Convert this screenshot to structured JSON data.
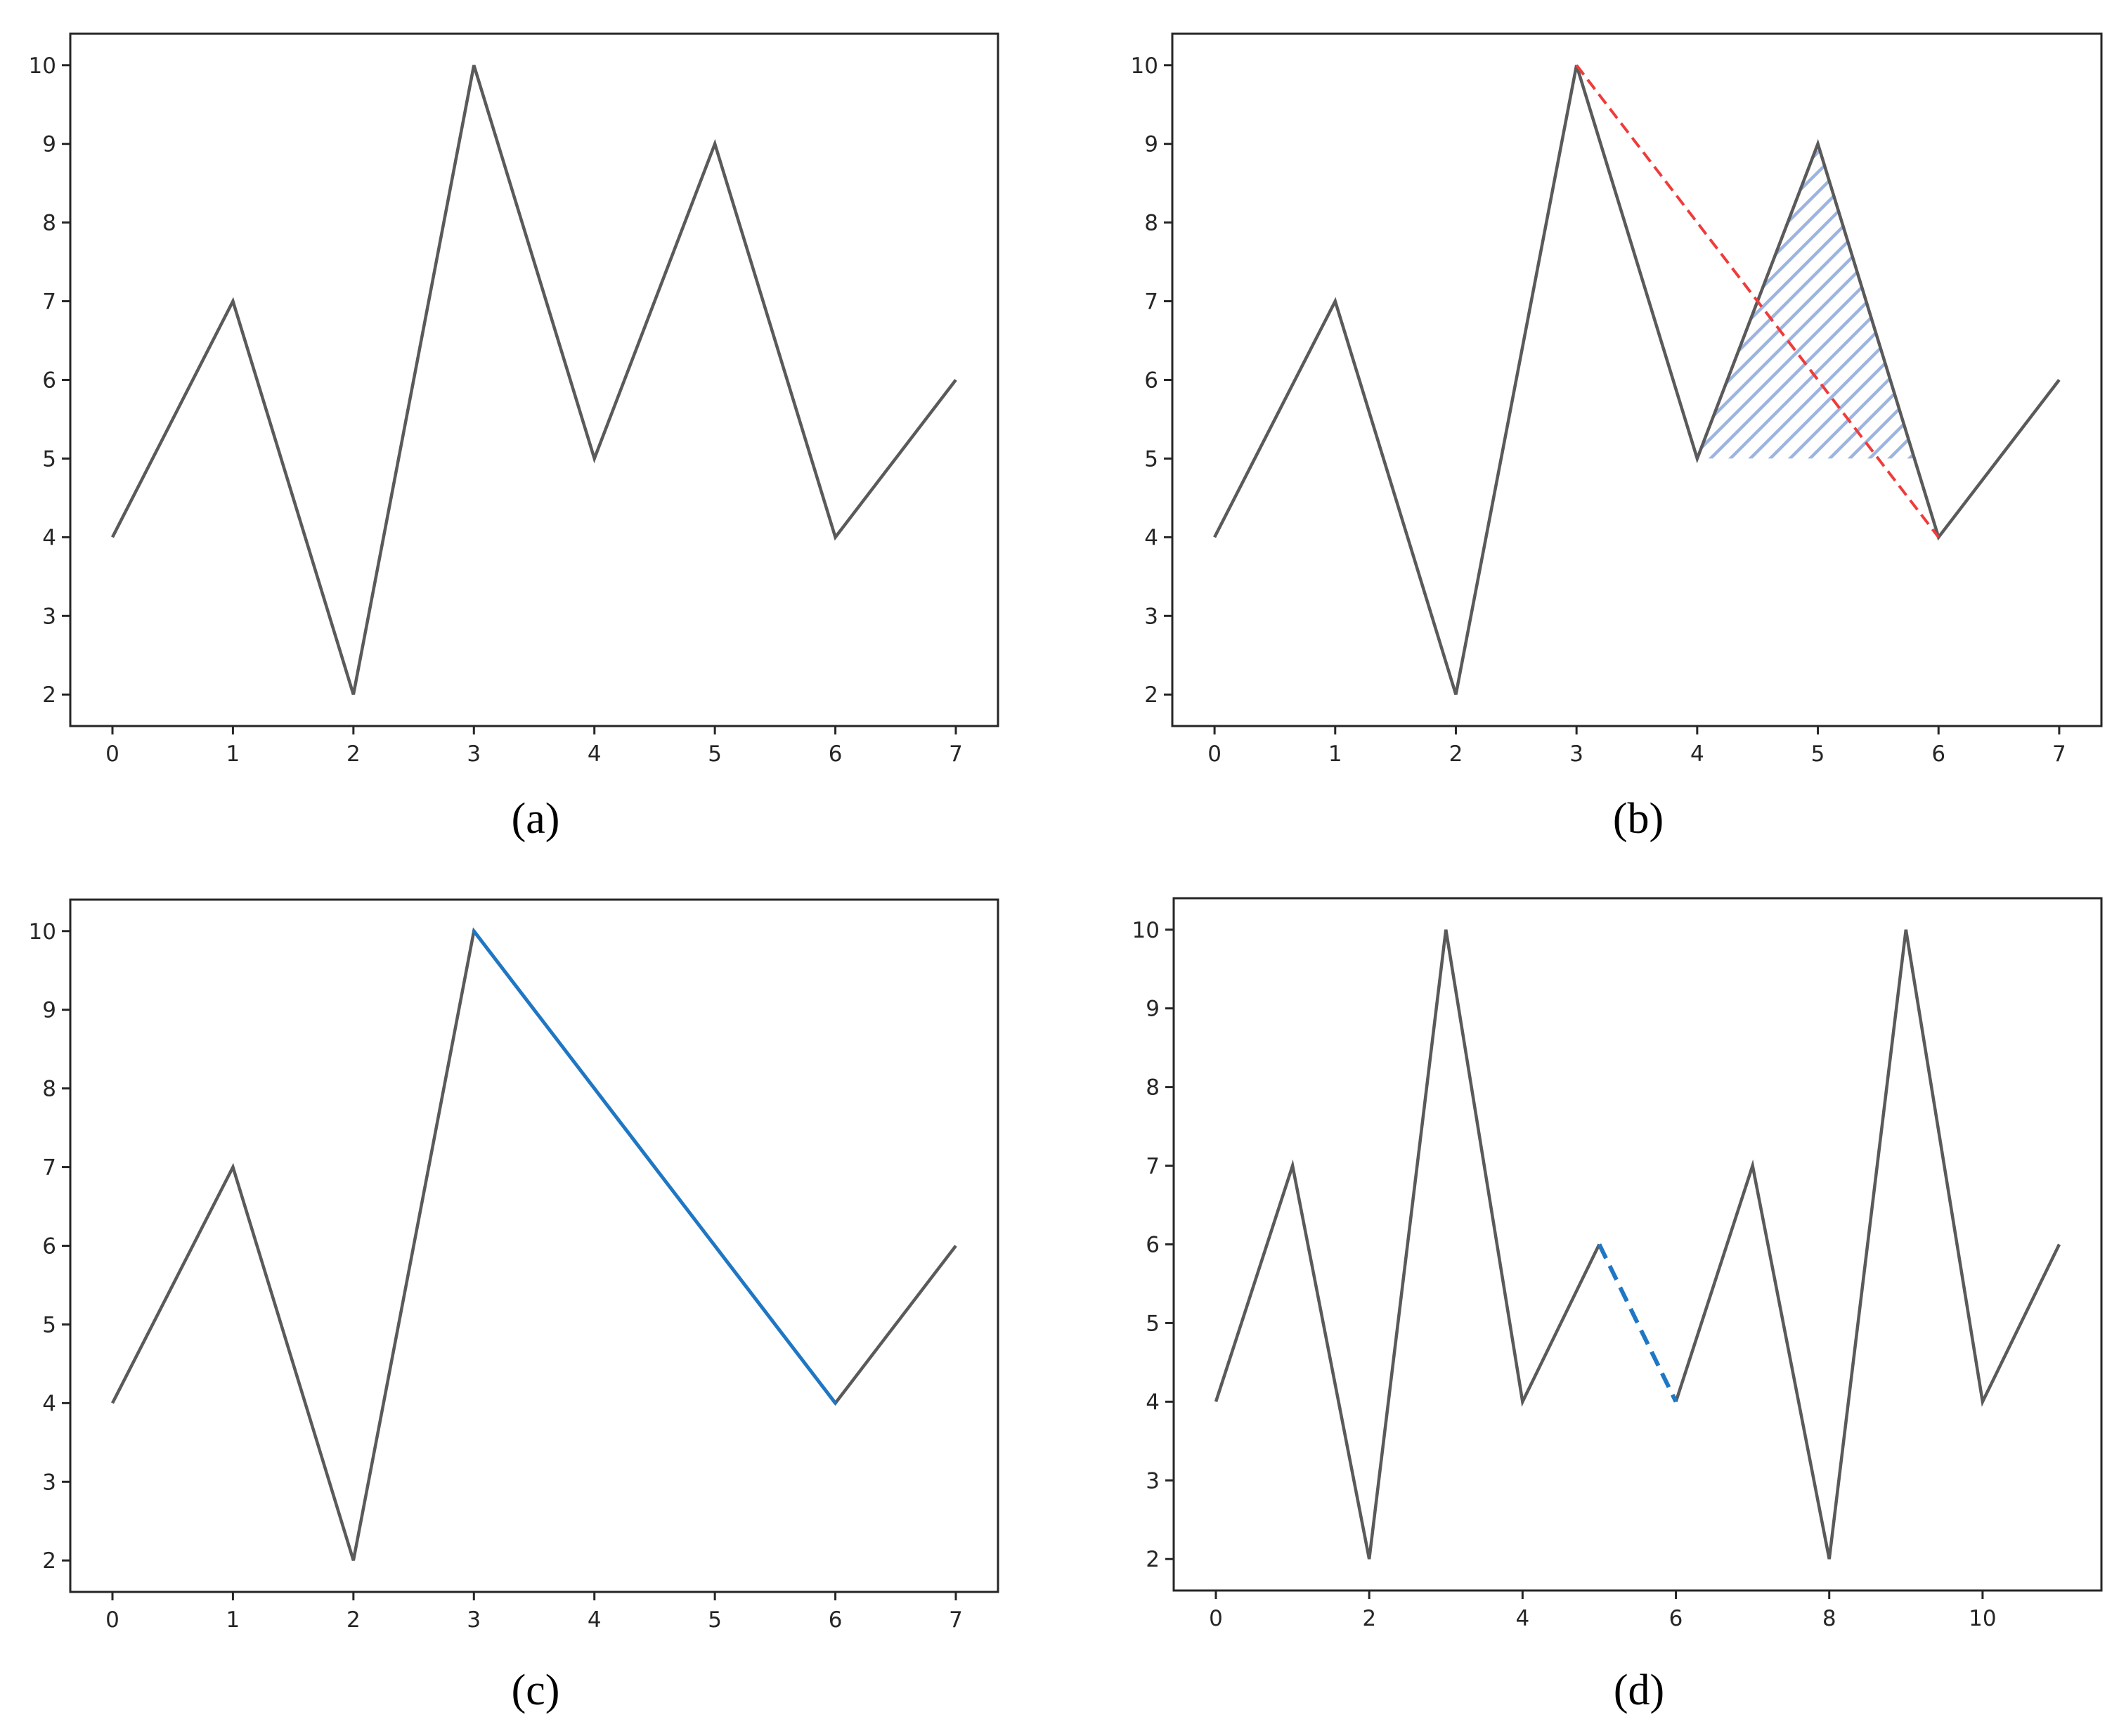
{
  "colors": {
    "main_line": "#5a5a5a",
    "red_dashed": "#ef3b3b",
    "blue_line": "#1f77c4",
    "hatch": "#9db4e0"
  },
  "chart_data": [
    {
      "id": "a",
      "type": "line",
      "caption": "(a)",
      "x": [
        0,
        1,
        2,
        3,
        4,
        5,
        6,
        7
      ],
      "series": [
        {
          "values": [
            4,
            7,
            2,
            10,
            5,
            9,
            4,
            6
          ],
          "color": "#5a5a5a"
        }
      ],
      "xticks": [
        "0",
        "1",
        "2",
        "3",
        "4",
        "5",
        "6",
        "7"
      ],
      "yticks": [
        "2",
        "3",
        "4",
        "5",
        "6",
        "7",
        "8",
        "9",
        "10"
      ],
      "xlim": [
        -0.35,
        7.35
      ],
      "ylim": [
        1.6,
        10.4
      ],
      "grid": false
    },
    {
      "id": "b",
      "type": "line",
      "caption": "(b)",
      "x": [
        0,
        1,
        2,
        3,
        4,
        5,
        6,
        7
      ],
      "series": [
        {
          "values": [
            4,
            7,
            2,
            10,
            5,
            9,
            4,
            6
          ],
          "color": "#5a5a5a"
        }
      ],
      "overlays": [
        {
          "kind": "dashed-line",
          "points": [
            [
              3,
              10
            ],
            [
              6,
              4
            ]
          ],
          "color": "#ef3b3b"
        },
        {
          "kind": "hatched-fill",
          "points": [
            [
              4,
              5
            ],
            [
              5,
              9
            ],
            [
              5.8,
              5
            ]
          ],
          "color": "#9db4e0"
        }
      ],
      "xticks": [
        "0",
        "1",
        "2",
        "3",
        "4",
        "5",
        "6",
        "7"
      ],
      "yticks": [
        "2",
        "3",
        "4",
        "5",
        "6",
        "7",
        "8",
        "9",
        "10"
      ],
      "xlim": [
        -0.35,
        7.35
      ],
      "ylim": [
        1.6,
        10.4
      ],
      "grid": false
    },
    {
      "id": "c",
      "type": "line",
      "caption": "(c)",
      "x": [
        0,
        1,
        2,
        3,
        6,
        7
      ],
      "series": [
        {
          "values": [
            4,
            7,
            2,
            10,
            4,
            6
          ],
          "color": "#5a5a5a"
        }
      ],
      "overlays": [
        {
          "kind": "solid-line",
          "points": [
            [
              3,
              10
            ],
            [
              6,
              4
            ]
          ],
          "color": "#1f77c4"
        }
      ],
      "xticks": [
        "0",
        "1",
        "2",
        "3",
        "4",
        "5",
        "6",
        "7"
      ],
      "yticks": [
        "2",
        "3",
        "4",
        "5",
        "6",
        "7",
        "8",
        "9",
        "10"
      ],
      "xlim": [
        -0.35,
        7.35
      ],
      "ylim": [
        1.6,
        10.4
      ],
      "grid": false
    },
    {
      "id": "d",
      "type": "line",
      "caption": "(d)",
      "x": [
        0,
        1,
        2,
        3,
        4,
        5,
        6,
        7,
        8,
        9,
        10,
        11
      ],
      "series": [
        {
          "values": [
            4,
            7,
            2,
            10,
            4,
            6,
            4,
            7,
            2,
            10,
            4,
            6
          ],
          "color": "#5a5a5a",
          "gap_after_index": 5
        }
      ],
      "overlays": [
        {
          "kind": "dashed-line",
          "points": [
            [
              5,
              6
            ],
            [
              6,
              4
            ]
          ],
          "color": "#1f77c4"
        }
      ],
      "xticks": [
        "0",
        "2",
        "4",
        "6",
        "8",
        "10"
      ],
      "xtick_values": [
        0,
        2,
        4,
        6,
        8,
        10
      ],
      "yticks": [
        "2",
        "3",
        "4",
        "5",
        "6",
        "7",
        "8",
        "9",
        "10"
      ],
      "xlim": [
        -0.55,
        11.55
      ],
      "ylim": [
        1.6,
        10.4
      ],
      "grid": false
    }
  ]
}
